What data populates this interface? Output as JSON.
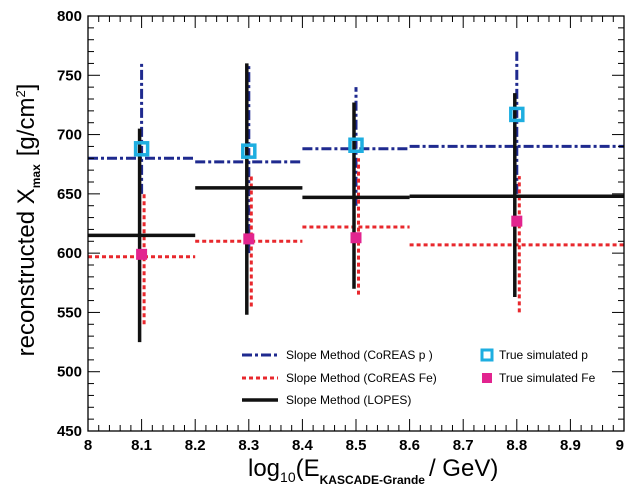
{
  "chart_data": {
    "type": "scatter",
    "ylabel": {
      "main": "reconstructed X",
      "sub": "max",
      "unit_open": "[g/cm",
      "unit_sup": "2",
      "unit_close": "]"
    },
    "xlabel": {
      "pre": "log",
      "sub1": "10",
      "mid": "(E",
      "sub2": "KASCADE-Grande",
      "post": "/ GeV)"
    },
    "xlim": [
      8,
      9
    ],
    "ylim": [
      450,
      800
    ],
    "x_ticks": [
      "8",
      "8.1",
      "8.2",
      "8.3",
      "8.4",
      "8.5",
      "8.6",
      "8.7",
      "8.8",
      "8.9",
      "9"
    ],
    "y_ticks": [
      "450",
      "500",
      "550",
      "600",
      "650",
      "700",
      "750",
      "800"
    ],
    "grid": false,
    "legend_position": "bottom",
    "series": [
      {
        "name": "Slope Method (CoREAS p )",
        "color": "#1f2a8f",
        "style": "dash-dot",
        "segments": [
          [
            8.0,
            8.2,
            680
          ],
          [
            8.2,
            8.4,
            677
          ],
          [
            8.4,
            8.6,
            688
          ],
          [
            8.6,
            9.0,
            690
          ]
        ],
        "points": [
          {
            "x": 8.1,
            "lo": 650,
            "hi": 760
          },
          {
            "x": 8.3,
            "lo": 600,
            "hi": 760
          },
          {
            "x": 8.5,
            "lo": 640,
            "hi": 740
          },
          {
            "x": 8.8,
            "lo": 650,
            "hi": 770
          }
        ]
      },
      {
        "name": "Slope Method (CoREAS Fe)",
        "color": "#e8282d",
        "style": "dotted",
        "segments": [
          [
            8.0,
            8.2,
            597
          ],
          [
            8.2,
            8.4,
            610
          ],
          [
            8.4,
            8.6,
            622
          ],
          [
            8.6,
            9.0,
            607
          ]
        ],
        "points": [
          {
            "x": 8.1,
            "lo": 540,
            "hi": 650
          },
          {
            "x": 8.3,
            "lo": 555,
            "hi": 665
          },
          {
            "x": 8.5,
            "lo": 565,
            "hi": 680
          },
          {
            "x": 8.8,
            "lo": 550,
            "hi": 665
          }
        ]
      },
      {
        "name": "Slope Method (LOPES)",
        "color": "#111111",
        "style": "solid",
        "segments": [
          [
            8.0,
            8.2,
            615
          ],
          [
            8.2,
            8.4,
            655
          ],
          [
            8.4,
            8.6,
            647
          ],
          [
            8.6,
            9.0,
            648
          ]
        ],
        "points": [
          {
            "x": 8.1,
            "lo": 525,
            "hi": 705
          },
          {
            "x": 8.3,
            "lo": 548,
            "hi": 760
          },
          {
            "x": 8.5,
            "lo": 570,
            "hi": 727
          },
          {
            "x": 8.8,
            "lo": 563,
            "hi": 735
          }
        ]
      },
      {
        "name": "True simulated p",
        "color": "#1eaee0",
        "style": "open-square",
        "points": [
          {
            "x": 8.1,
            "y": 688
          },
          {
            "x": 8.3,
            "y": 686
          },
          {
            "x": 8.5,
            "y": 691
          },
          {
            "x": 8.8,
            "y": 717
          }
        ]
      },
      {
        "name": "True simulated Fe",
        "color": "#e2248f",
        "style": "filled-square",
        "points": [
          {
            "x": 8.1,
            "y": 599
          },
          {
            "x": 8.3,
            "y": 612
          },
          {
            "x": 8.5,
            "y": 613
          },
          {
            "x": 8.8,
            "y": 627
          }
        ]
      }
    ]
  }
}
